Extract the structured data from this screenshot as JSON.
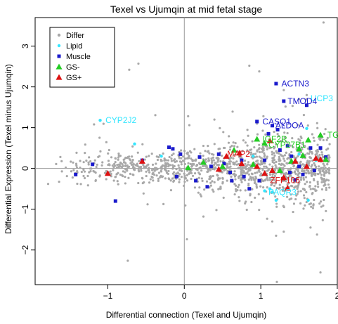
{
  "chart_data": {
    "type": "scatter",
    "title": "Texel vs Ujumqin at mid fetal stage",
    "xlabel": "Differential connection (Texel and Ujumqin)",
    "ylabel": "Differential Expression (Texel minus Ujumqin)",
    "xlim": [
      -1.95,
      2.0
    ],
    "ylim": [
      -2.85,
      3.7
    ],
    "xticks": [
      -1,
      0,
      1,
      2
    ],
    "yticks": [
      -2,
      -1,
      0,
      1,
      2,
      3
    ],
    "reference_lines": {
      "x": 0,
      "y": 0
    },
    "legend": {
      "position": "top-left",
      "entries": [
        {
          "label": "Differ",
          "color": "#a8a8a8",
          "shape": "circle"
        },
        {
          "label": "Lipid",
          "color": "#33e6ff",
          "shape": "circle"
        },
        {
          "label": "Muscle",
          "color": "#1a1acc",
          "shape": "square"
        },
        {
          "label": "GS-",
          "color": "#22cc22",
          "shape": "triangle"
        },
        {
          "label": "GS+",
          "color": "#dd1111",
          "shape": "triangle"
        }
      ]
    },
    "series": [
      {
        "name": "Lipid",
        "color": "#33e6ff",
        "shape": "circle",
        "points": [
          [
            -1.1,
            1.18
          ],
          [
            -0.65,
            0.6
          ],
          [
            -0.3,
            0.3
          ],
          [
            0.9,
            0.3
          ],
          [
            1.05,
            -0.55
          ],
          [
            1.12,
            -0.5
          ],
          [
            1.2,
            -0.78
          ],
          [
            1.6,
            0.98
          ],
          [
            1.5,
            0.35
          ],
          [
            1.62,
            -0.78
          ],
          [
            1.72,
            0.2
          ],
          [
            1.15,
            -0.58
          ]
        ]
      },
      {
        "name": "Muscle",
        "color": "#1a1acc",
        "shape": "square",
        "points": [
          [
            -1.42,
            -0.15
          ],
          [
            -1.2,
            0.1
          ],
          [
            -0.9,
            -0.8
          ],
          [
            -0.55,
            0.2
          ],
          [
            -0.2,
            0.52
          ],
          [
            -0.15,
            0.48
          ],
          [
            -0.05,
            0.35
          ],
          [
            -0.1,
            -0.2
          ],
          [
            0.2,
            0.28
          ],
          [
            0.35,
            0.05
          ],
          [
            0.45,
            0.35
          ],
          [
            0.6,
            -0.1
          ],
          [
            0.62,
            -0.3
          ],
          [
            0.75,
            0.2
          ],
          [
            0.78,
            -0.2
          ],
          [
            0.85,
            -0.5
          ],
          [
            0.95,
            1.15
          ],
          [
            0.98,
            -0.3
          ],
          [
            1.05,
            0.2
          ],
          [
            1.1,
            0.85
          ],
          [
            1.15,
            1.05
          ],
          [
            1.2,
            2.08
          ],
          [
            1.25,
            0.45
          ],
          [
            1.3,
            1.65
          ],
          [
            1.35,
            0.55
          ],
          [
            1.38,
            -0.1
          ],
          [
            1.4,
            0.3
          ],
          [
            1.45,
            -0.28
          ],
          [
            1.5,
            0.05
          ],
          [
            1.55,
            -0.15
          ],
          [
            1.6,
            1.55
          ],
          [
            1.65,
            0.5
          ],
          [
            1.7,
            -0.05
          ],
          [
            1.78,
            0.5
          ],
          [
            1.85,
            0.28
          ],
          [
            0.3,
            -0.45
          ],
          [
            0.52,
            0.12
          ],
          [
            0.15,
            -0.3
          ],
          [
            1.22,
            0.95
          ]
        ]
      },
      {
        "name": "GS-",
        "color": "#22cc22",
        "shape": "triangle",
        "points": [
          [
            0.05,
            0.02
          ],
          [
            0.25,
            0.15
          ],
          [
            0.5,
            0.05
          ],
          [
            0.65,
            0.45
          ],
          [
            0.95,
            0.72
          ],
          [
            1.05,
            0.62
          ],
          [
            1.25,
            -0.05
          ],
          [
            1.4,
            0.18
          ],
          [
            1.5,
            0.48
          ],
          [
            1.55,
            0.32
          ],
          [
            1.62,
            0.7
          ],
          [
            1.78,
            0.82
          ],
          [
            1.85,
            0.22
          ],
          [
            0.9,
            0.1
          ]
        ]
      },
      {
        "name": "GS+",
        "color": "#dd1111",
        "shape": "triangle",
        "points": [
          [
            -1.0,
            -0.12
          ],
          [
            -0.55,
            0.18
          ],
          [
            0.45,
            -0.02
          ],
          [
            0.55,
            0.3
          ],
          [
            0.72,
            0.38
          ],
          [
            0.75,
            0.12
          ],
          [
            0.95,
            0.05
          ],
          [
            1.05,
            -0.12
          ],
          [
            1.15,
            -0.05
          ],
          [
            1.3,
            -0.22
          ],
          [
            1.45,
            0.18
          ],
          [
            1.6,
            0.05
          ],
          [
            1.72,
            0.25
          ],
          [
            1.78,
            0.22
          ],
          [
            1.12,
            0.68
          ],
          [
            1.35,
            -0.48
          ]
        ]
      }
    ],
    "background_series": {
      "name": "Differ",
      "color": "#a8a8a8",
      "points": [
        [
          1.82,
          3.58
        ],
        [
          -0.6,
          2.57
        ],
        [
          -0.72,
          2.42
        ],
        [
          0.98,
          2.38
        ],
        [
          0.85,
          2.52
        ],
        [
          1.3,
          1.92
        ],
        [
          1.5,
          1.7
        ],
        [
          1.6,
          1.8
        ],
        [
          0.05,
          1.28
        ],
        [
          0.95,
          1.1
        ],
        [
          1.78,
          -2.55
        ],
        [
          1.2,
          -1.65
        ],
        [
          1.3,
          -1.55
        ],
        [
          1.15,
          -1.3
        ],
        [
          0.42,
          -1.02
        ],
        [
          -1.78,
          -0.38
        ],
        [
          -1.62,
          0.28
        ],
        [
          -1.55,
          0.02
        ],
        [
          -1.3,
          0.38
        ],
        [
          -1.18,
          1.08
        ],
        [
          1.65,
          -1.45
        ],
        [
          0.25,
          -1.18
        ],
        [
          -0.48,
          -0.88
        ]
      ]
    },
    "annotations": [
      {
        "text": "ACTN3",
        "x": 1.27,
        "y": 2.08,
        "color": "#1a1acc"
      },
      {
        "text": "UCP3",
        "x": 1.65,
        "y": 1.72,
        "color": "#33e6ff"
      },
      {
        "text": "TMOD4",
        "x": 1.35,
        "y": 1.65,
        "color": "#1a1acc"
      },
      {
        "text": "CYP2J2",
        "x": -1.03,
        "y": 1.18,
        "color": "#33e6ff"
      },
      {
        "text": "CASQ1",
        "x": 1.02,
        "y": 1.15,
        "color": "#1a1acc"
      },
      {
        "text": "ALDOA",
        "x": 1.19,
        "y": 1.05,
        "color": "#1a1acc"
      },
      {
        "text": "TGF",
        "x": 1.87,
        "y": 0.82,
        "color": "#22cc22"
      },
      {
        "text": "IGF2R",
        "x": 1.02,
        "y": 0.72,
        "color": "#22cc22"
      },
      {
        "text": "CYP27B1",
        "x": 1.1,
        "y": 0.58,
        "color": "#22cc22"
      },
      {
        "text": "MAP2",
        "x": 0.56,
        "y": 0.36,
        "color": "#dd1111"
      },
      {
        "text": "ZFP106",
        "x": 1.12,
        "y": -0.29,
        "color": "#dd1111"
      },
      {
        "text": "PAQR3",
        "x": 1.1,
        "y": -0.58,
        "color": "#33e6ff"
      }
    ]
  }
}
